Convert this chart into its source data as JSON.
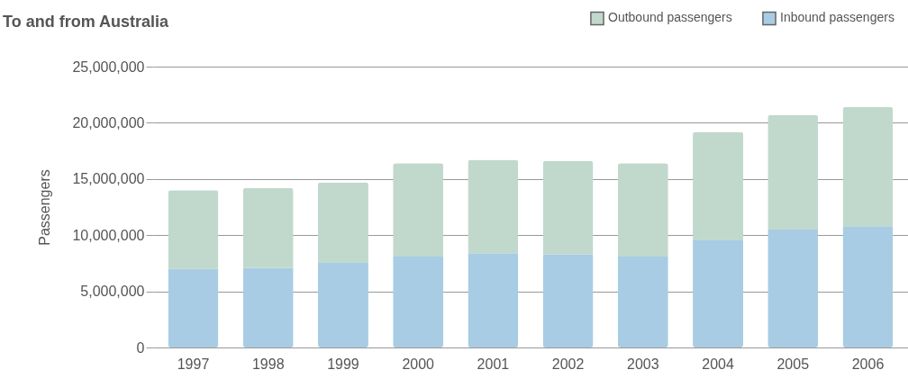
{
  "chart_data": {
    "type": "bar",
    "title": "To and from Australia",
    "ylabel": "Passengers",
    "stacked": true,
    "legend": "top right",
    "grid": "y",
    "categories": [
      "1997",
      "1998",
      "1999",
      "2000",
      "2001",
      "2002",
      "2003",
      "2004",
      "2005",
      "2006"
    ],
    "series": [
      {
        "name": "Inbound passengers",
        "color": "#a8cce3",
        "values": [
          7000000,
          7100000,
          7600000,
          8100000,
          8400000,
          8300000,
          8100000,
          9600000,
          10500000,
          10800000
        ]
      },
      {
        "name": "Outbound passengers",
        "color": "#c0d9cc",
        "values": [
          7000000,
          7100000,
          7100000,
          8300000,
          8300000,
          8300000,
          8300000,
          9600000,
          10200000,
          10600000
        ]
      }
    ],
    "ylim": [
      0,
      25000000
    ],
    "yticks": [
      0,
      {
        "value": 5000000,
        "label": "5,000,000"
      },
      {
        "value": 10000000,
        "label": "10,000,000"
      },
      {
        "value": 15000000,
        "label": "15,000,000"
      },
      {
        "value": 20000000,
        "label": "20,000,000"
      },
      {
        "value": 25000000,
        "label": "25,000,000"
      }
    ]
  }
}
